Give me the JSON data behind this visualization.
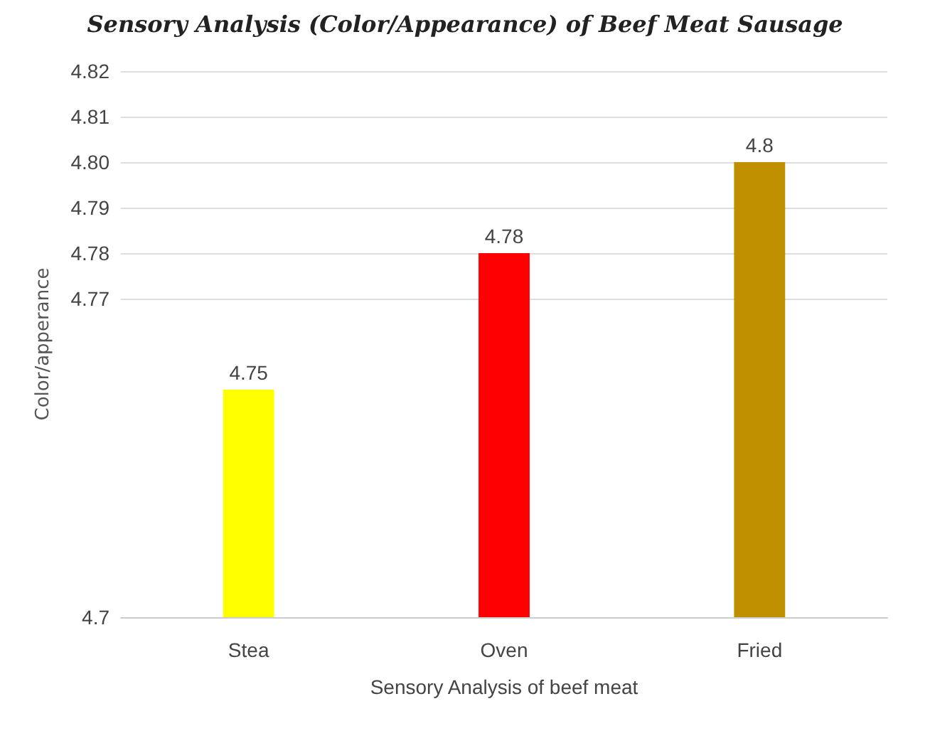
{
  "chart_data": {
    "type": "bar",
    "title": "Sensory Analysis (Color/Appearance) of Beef Meat Sausage",
    "xlabel": "Sensory Analysis of beef meat",
    "ylabel": "Color/apperance",
    "categories": [
      "Stea",
      "Oven",
      "Fried"
    ],
    "values": [
      4.75,
      4.78,
      4.8
    ],
    "colors": [
      "#ffff00",
      "#ff0000",
      "#bf8f00"
    ],
    "value_labels": [
      "4.75",
      "4.78",
      "4.8"
    ],
    "ylim": [
      4.7,
      4.82
    ],
    "yticks": [
      4.7,
      4.77,
      4.78,
      4.79,
      {
        "value": 4.8,
        "label": "4.80"
      },
      4.81,
      4.82
    ],
    "grid": "y"
  }
}
